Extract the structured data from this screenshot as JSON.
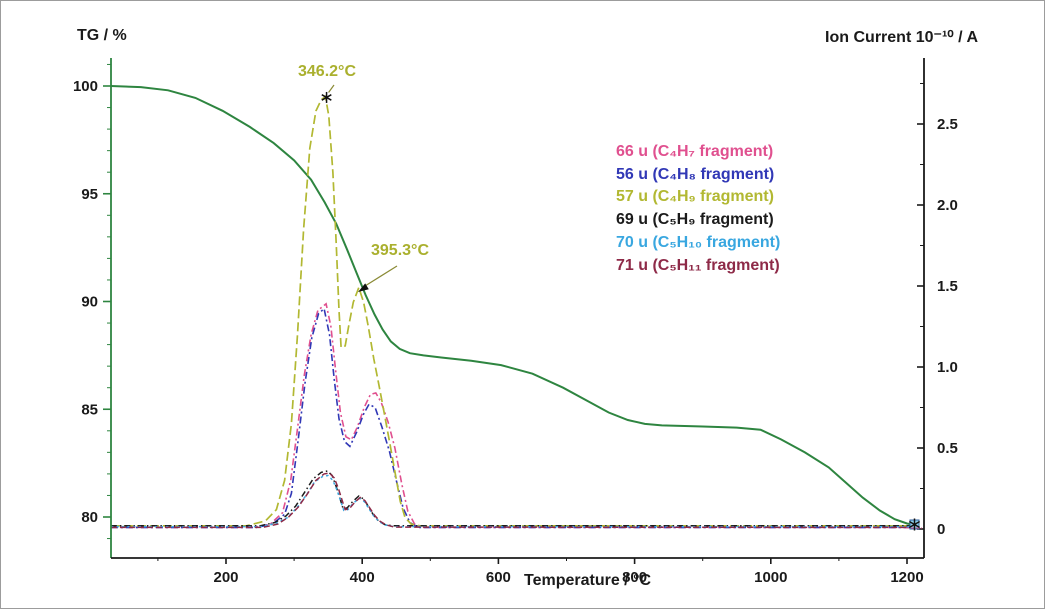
{
  "figure": {
    "left_axis_title": "TG / %",
    "right_axis_title": "Ion Current 10⁻¹⁰ / A",
    "x_axis_title": "Temperature / °C"
  },
  "legend": {
    "items": [
      {
        "label": "66 u (C₄H₇ fragment)",
        "color": "#e0508f"
      },
      {
        "label": "56 u (C₄H₈ fragment)",
        "color": "#3138b6"
      },
      {
        "label": "57 u (C₄H₉ fragment)",
        "color": "#b2b832"
      },
      {
        "label": "69 u (C₅H₉ fragment)",
        "color": "#1b1b1b"
      },
      {
        "label": "70 u (C₅H₁₀ fragment)",
        "color": "#39a7e0"
      },
      {
        "label": "71 u (C₅H₁₁ fragment)",
        "color": "#8e2a48"
      }
    ]
  },
  "annotations": [
    {
      "text": "346.2°C",
      "x_celsius": 346.2,
      "peak_value": 2.67,
      "color": "#aab02e"
    },
    {
      "text": "395.3°C",
      "x_celsius": 395.3,
      "peak_value": 1.49,
      "color": "#aab02e"
    }
  ],
  "chart_data": {
    "type": "line",
    "title": "",
    "xlabel": "Temperature / °C",
    "ylabel_left": "TG / %",
    "ylabel_right": "Ion Current 10⁻¹⁰ / A",
    "xlim": [
      30,
      1225
    ],
    "ylim_left": [
      78,
      101.5
    ],
    "ylim_right": [
      -0.05,
      2.9
    ],
    "grid": false,
    "legend_position": "upper-right-inside",
    "x_ticks": [
      200,
      400,
      600,
      800,
      1000,
      1200
    ],
    "x_minor_step": 100,
    "left_ticks": [
      80,
      85,
      90,
      95,
      100
    ],
    "left_minor_step": 1,
    "right_tick_values": [
      0,
      0.5,
      1.0,
      1.5,
      2.0,
      2.5
    ],
    "right_tick_labels": [
      "0",
      "0.5",
      "1.0",
      "1.5",
      "2.0",
      "2.5"
    ],
    "right_minor_step": 0.25,
    "colors": {
      "left_axis": "#2e8540",
      "right_axis": "#1a1a1a",
      "bottom_axis": "#1a1a1a"
    },
    "peak_annotations": [
      {
        "label": "346.2°C",
        "x": 346.2,
        "y": 2.67,
        "series": "57u"
      },
      {
        "label": "395.3°C",
        "x": 395.3,
        "y": 1.49,
        "series": "57u"
      }
    ],
    "series": [
      {
        "name": "TG",
        "axis": "left",
        "color": "#2e8540",
        "dash": "",
        "width": 2,
        "points": [
          [
            31,
            100
          ],
          [
            75,
            99.95
          ],
          [
            115,
            99.8
          ],
          [
            155,
            99.45
          ],
          [
            195,
            98.85
          ],
          [
            235,
            98.1
          ],
          [
            270,
            97.35
          ],
          [
            300,
            96.55
          ],
          [
            325,
            95.65
          ],
          [
            345,
            94.6
          ],
          [
            362,
            93.6
          ],
          [
            378,
            92.4
          ],
          [
            392,
            91.3
          ],
          [
            405,
            90.3
          ],
          [
            418,
            89.4
          ],
          [
            430,
            88.7
          ],
          [
            442,
            88.15
          ],
          [
            455,
            87.8
          ],
          [
            470,
            87.6
          ],
          [
            490,
            87.5
          ],
          [
            516,
            87.4
          ],
          [
            560,
            87.25
          ],
          [
            604,
            87.05
          ],
          [
            650,
            86.65
          ],
          [
            695,
            86.0
          ],
          [
            730,
            85.4
          ],
          [
            762,
            84.85
          ],
          [
            790,
            84.5
          ],
          [
            815,
            84.32
          ],
          [
            840,
            84.25
          ],
          [
            900,
            84.2
          ],
          [
            950,
            84.15
          ],
          [
            985,
            84.05
          ],
          [
            1015,
            83.6
          ],
          [
            1050,
            83.0
          ],
          [
            1085,
            82.3
          ],
          [
            1110,
            81.6
          ],
          [
            1135,
            80.9
          ],
          [
            1160,
            80.3
          ],
          [
            1182,
            79.9
          ],
          [
            1200,
            79.7
          ],
          [
            1214,
            79.62
          ]
        ]
      },
      {
        "name": "66u",
        "axis": "right",
        "color": "#e0508f",
        "dash": "7 3 2 3",
        "width": 1.6,
        "points": [
          [
            31,
            0.01
          ],
          [
            240,
            0.01
          ],
          [
            265,
            0.03
          ],
          [
            283,
            0.1
          ],
          [
            295,
            0.3
          ],
          [
            305,
            0.62
          ],
          [
            315,
            0.95
          ],
          [
            325,
            1.2
          ],
          [
            335,
            1.35
          ],
          [
            347,
            1.39
          ],
          [
            354,
            1.25
          ],
          [
            361,
            0.98
          ],
          [
            368,
            0.72
          ],
          [
            376,
            0.57
          ],
          [
            384,
            0.55
          ],
          [
            393,
            0.63
          ],
          [
            403,
            0.75
          ],
          [
            412,
            0.83
          ],
          [
            420,
            0.84
          ],
          [
            428,
            0.78
          ],
          [
            438,
            0.66
          ],
          [
            448,
            0.5
          ],
          [
            458,
            0.28
          ],
          [
            467,
            0.11
          ],
          [
            477,
            0.03
          ],
          [
            490,
            0.01
          ],
          [
            1212,
            0.01
          ]
        ]
      },
      {
        "name": "56u",
        "axis": "right",
        "color": "#3138b6",
        "dash": "7 3 2 3",
        "width": 1.6,
        "points": [
          [
            31,
            0.01
          ],
          [
            245,
            0.01
          ],
          [
            268,
            0.03
          ],
          [
            286,
            0.09
          ],
          [
            296,
            0.22
          ],
          [
            306,
            0.55
          ],
          [
            316,
            0.9
          ],
          [
            326,
            1.18
          ],
          [
            336,
            1.33
          ],
          [
            344,
            1.36
          ],
          [
            352,
            1.2
          ],
          [
            359,
            0.92
          ],
          [
            366,
            0.68
          ],
          [
            374,
            0.54
          ],
          [
            382,
            0.51
          ],
          [
            392,
            0.6
          ],
          [
            402,
            0.71
          ],
          [
            410,
            0.77
          ],
          [
            419,
            0.75
          ],
          [
            429,
            0.63
          ],
          [
            440,
            0.48
          ],
          [
            450,
            0.3
          ],
          [
            460,
            0.13
          ],
          [
            470,
            0.04
          ],
          [
            482,
            0.01
          ],
          [
            1212,
            0.01
          ]
        ]
      },
      {
        "name": "57u",
        "axis": "right",
        "color": "#b2b832",
        "dash": "9 4",
        "width": 1.7,
        "points": [
          [
            31,
            0.02
          ],
          [
            230,
            0.02
          ],
          [
            258,
            0.05
          ],
          [
            274,
            0.12
          ],
          [
            286,
            0.3
          ],
          [
            296,
            0.65
          ],
          [
            305,
            1.2
          ],
          [
            314,
            1.85
          ],
          [
            323,
            2.35
          ],
          [
            332,
            2.58
          ],
          [
            340,
            2.65
          ],
          [
            346,
            2.67
          ],
          [
            351,
            2.55
          ],
          [
            357,
            2.2
          ],
          [
            362,
            1.75
          ],
          [
            366,
            1.35
          ],
          [
            369,
            1.12
          ],
          [
            375,
            1.13
          ],
          [
            380,
            1.25
          ],
          [
            387,
            1.4
          ],
          [
            395,
            1.49
          ],
          [
            402,
            1.4
          ],
          [
            409,
            1.25
          ],
          [
            417,
            1.05
          ],
          [
            425,
            0.88
          ],
          [
            433,
            0.7
          ],
          [
            441,
            0.52
          ],
          [
            449,
            0.33
          ],
          [
            456,
            0.17
          ],
          [
            463,
            0.07
          ],
          [
            472,
            0.03
          ],
          [
            485,
            0.02
          ],
          [
            1212,
            0.02
          ]
        ]
      },
      {
        "name": "69u",
        "axis": "right",
        "color": "#1b1b1b",
        "dash": "6 3 1.5 3",
        "width": 1.5,
        "points": [
          [
            31,
            0.02
          ],
          [
            250,
            0.02
          ],
          [
            272,
            0.04
          ],
          [
            288,
            0.08
          ],
          [
            302,
            0.14
          ],
          [
            316,
            0.23
          ],
          [
            328,
            0.31
          ],
          [
            340,
            0.35
          ],
          [
            349,
            0.358
          ],
          [
            356,
            0.33
          ],
          [
            362,
            0.26
          ],
          [
            368,
            0.18
          ],
          [
            372,
            0.125
          ],
          [
            378,
            0.13
          ],
          [
            386,
            0.17
          ],
          [
            395,
            0.204
          ],
          [
            402,
            0.185
          ],
          [
            409,
            0.14
          ],
          [
            416,
            0.09
          ],
          [
            424,
            0.05
          ],
          [
            433,
            0.028
          ],
          [
            445,
            0.02
          ],
          [
            1212,
            0.02
          ]
        ]
      },
      {
        "name": "70u",
        "axis": "right",
        "color": "#39a7e0",
        "dash": "2.5 3",
        "width": 1.5,
        "points": [
          [
            31,
            0.015
          ],
          [
            252,
            0.015
          ],
          [
            274,
            0.035
          ],
          [
            290,
            0.07
          ],
          [
            304,
            0.13
          ],
          [
            318,
            0.21
          ],
          [
            330,
            0.29
          ],
          [
            342,
            0.325
          ],
          [
            350,
            0.33
          ],
          [
            357,
            0.3
          ],
          [
            363,
            0.24
          ],
          [
            369,
            0.165
          ],
          [
            373,
            0.115
          ],
          [
            379,
            0.12
          ],
          [
            387,
            0.16
          ],
          [
            396,
            0.19
          ],
          [
            403,
            0.17
          ],
          [
            410,
            0.125
          ],
          [
            417,
            0.08
          ],
          [
            425,
            0.045
          ],
          [
            434,
            0.025
          ],
          [
            446,
            0.015
          ],
          [
            1212,
            0.015
          ]
        ]
      },
      {
        "name": "71u",
        "axis": "right",
        "color": "#8e2a48",
        "dash": "6 3",
        "width": 1.5,
        "points": [
          [
            31,
            0.01
          ],
          [
            254,
            0.01
          ],
          [
            276,
            0.03
          ],
          [
            292,
            0.075
          ],
          [
            306,
            0.135
          ],
          [
            320,
            0.22
          ],
          [
            332,
            0.3
          ],
          [
            344,
            0.34
          ],
          [
            352,
            0.345
          ],
          [
            359,
            0.315
          ],
          [
            365,
            0.25
          ],
          [
            371,
            0.17
          ],
          [
            375,
            0.12
          ],
          [
            381,
            0.125
          ],
          [
            389,
            0.165
          ],
          [
            397,
            0.195
          ],
          [
            404,
            0.175
          ],
          [
            411,
            0.13
          ],
          [
            418,
            0.085
          ],
          [
            426,
            0.048
          ],
          [
            435,
            0.026
          ],
          [
            447,
            0.012
          ],
          [
            1212,
            0.01
          ]
        ]
      }
    ]
  }
}
